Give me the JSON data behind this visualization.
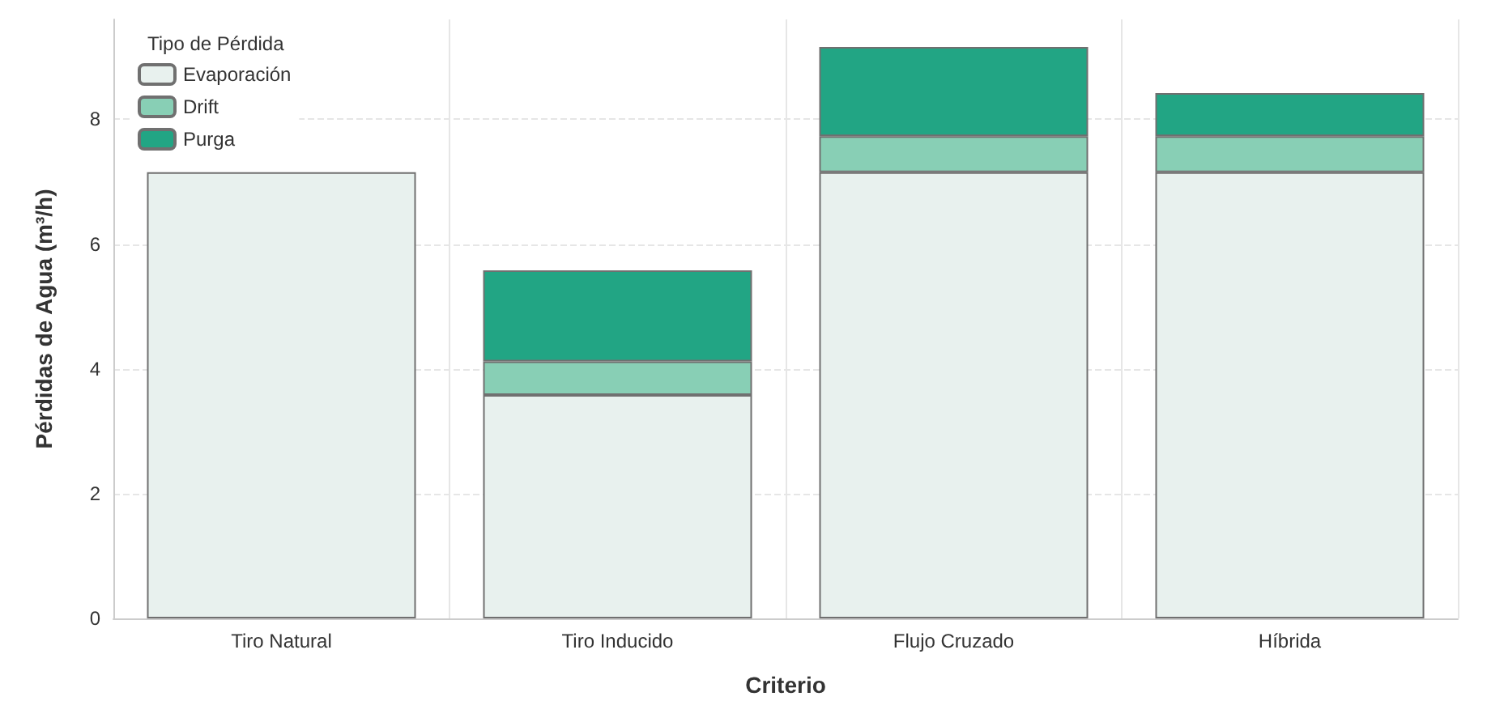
{
  "chart_data": {
    "type": "bar",
    "stacked": true,
    "xlabel": "Criterio",
    "ylabel": "Pérdidas de Agua (m³/h)",
    "legend_title": "Tipo de Pérdida",
    "legend": "top left",
    "grid": true,
    "categories": [
      "Tiro Natural",
      "Tiro Inducido",
      "Flujo Cruzado",
      "Híbrida"
    ],
    "ylim": [
      0,
      9.6
    ],
    "yticks": [
      0,
      2,
      4,
      6,
      8
    ],
    "series": [
      {
        "name": "Evaporación",
        "color": "#e8f1ee",
        "values": [
          7.15,
          3.58,
          7.15,
          7.15
        ]
      },
      {
        "name": "Drift",
        "color": "#88cfb5",
        "values": [
          null,
          0.54,
          0.58,
          0.58
        ]
      },
      {
        "name": "Purga",
        "color": "#22a584",
        "values": [
          null,
          1.46,
          1.43,
          0.69
        ]
      }
    ]
  }
}
